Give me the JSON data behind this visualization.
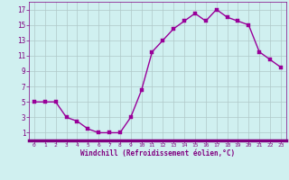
{
  "x": [
    0,
    1,
    2,
    3,
    4,
    5,
    6,
    7,
    8,
    9,
    10,
    11,
    12,
    13,
    14,
    15,
    16,
    17,
    18,
    19,
    20,
    21,
    22,
    23
  ],
  "y": [
    5,
    5,
    5,
    3,
    2.5,
    1.5,
    1,
    1,
    1,
    3,
    6.5,
    11.5,
    13,
    14.5,
    15.5,
    16.5,
    15.5,
    17,
    16,
    15.5,
    15,
    11.5,
    10.5,
    9.5
  ],
  "line_color": "#990099",
  "marker_color": "#990099",
  "bg_color": "#d0f0f0",
  "grid_color": "#b0c8c8",
  "bottom_bar_color": "#800080",
  "xlabel": "Windchill (Refroidissement éolien,°C)",
  "ylabel_ticks": [
    1,
    3,
    5,
    7,
    9,
    11,
    13,
    15,
    17
  ],
  "xlim": [
    -0.5,
    23.5
  ],
  "ylim": [
    0,
    18
  ],
  "xtick_labels": [
    "0",
    "1",
    "2",
    "3",
    "4",
    "5",
    "6",
    "7",
    "8",
    "9",
    "10",
    "11",
    "12",
    "13",
    "14",
    "15",
    "16",
    "17",
    "18",
    "19",
    "20",
    "21",
    "22",
    "23"
  ],
  "font_family": "monospace",
  "line_width": 1.0,
  "marker_size": 2.5,
  "label_color": "#800080",
  "tick_color": "#800080"
}
